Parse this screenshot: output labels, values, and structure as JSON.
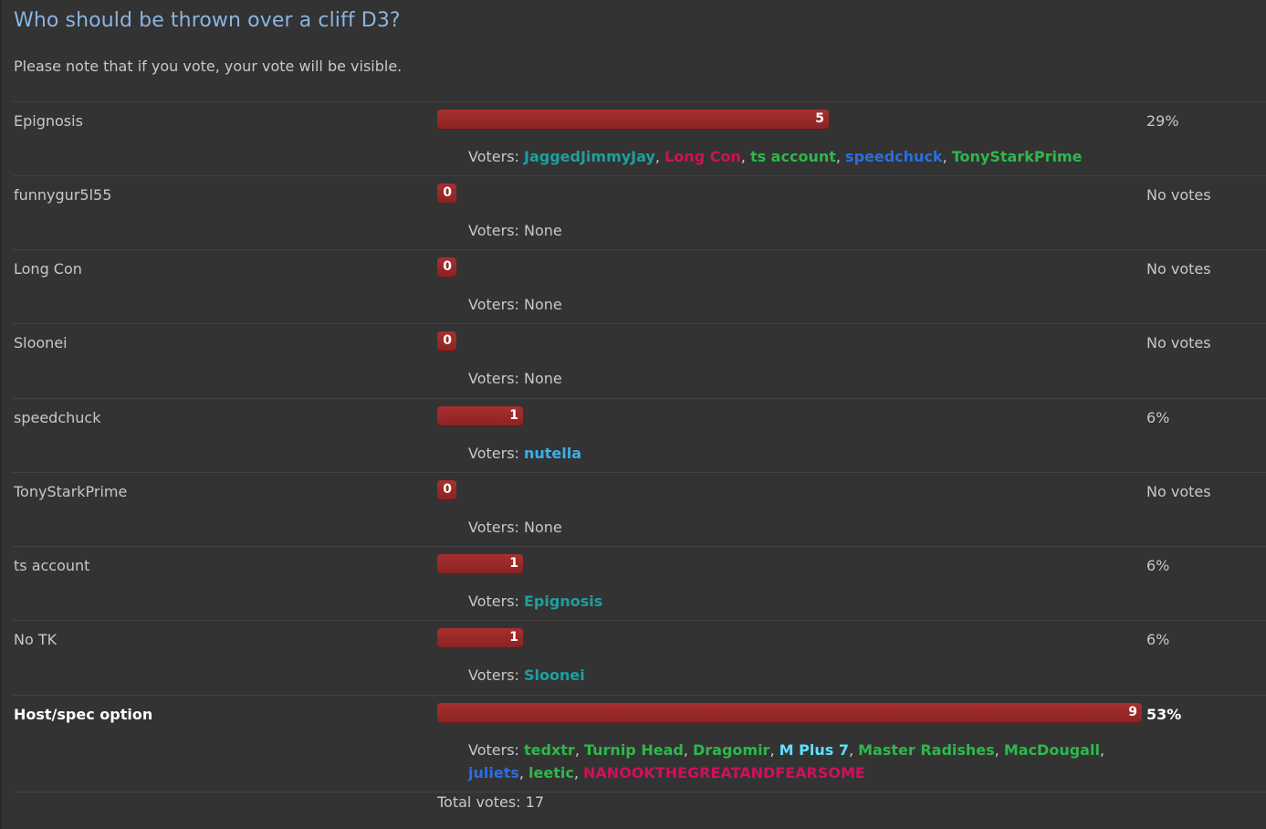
{
  "poll": {
    "title": "Who should be thrown over a cliff D3?",
    "note": "Please note that if you vote, your vote will be visible.",
    "voters_label": "Voters:",
    "none_label": "None",
    "total_label": "Total votes: 17",
    "max_votes": 9,
    "bar_color": "#9a2a2a",
    "options": [
      {
        "label": "Epignosis",
        "count": "5",
        "percent": "29%",
        "bold": false,
        "voters": [
          {
            "name": "JaggedJimmyJay",
            "color": "#1e9f9f"
          },
          {
            "name": "Long Con",
            "color": "#d0105a"
          },
          {
            "name": "ts account",
            "color": "#2db84a"
          },
          {
            "name": "speedchuck",
            "color": "#2a6ee0"
          },
          {
            "name": "TonyStarkPrime",
            "color": "#2db84a"
          }
        ]
      },
      {
        "label": "funnygur5l55",
        "count": "0",
        "percent": "No votes",
        "bold": false,
        "voters": []
      },
      {
        "label": "Long Con",
        "count": "0",
        "percent": "No votes",
        "bold": false,
        "voters": []
      },
      {
        "label": "Sloonei",
        "count": "0",
        "percent": "No votes",
        "bold": false,
        "voters": []
      },
      {
        "label": "speedchuck",
        "count": "1",
        "percent": "6%",
        "bold": false,
        "voters": [
          {
            "name": "nutella",
            "color": "#3ab0e8"
          }
        ]
      },
      {
        "label": "TonyStarkPrime",
        "count": "0",
        "percent": "No votes",
        "bold": false,
        "voters": []
      },
      {
        "label": "ts account",
        "count": "1",
        "percent": "6%",
        "bold": false,
        "voters": [
          {
            "name": "Epignosis",
            "color": "#1e9f9f"
          }
        ]
      },
      {
        "label": "No TK",
        "count": "1",
        "percent": "6%",
        "bold": false,
        "voters": [
          {
            "name": "Sloonei",
            "color": "#1e9f9f"
          }
        ]
      },
      {
        "label": "Host/spec option",
        "count": "9",
        "percent": "53%",
        "bold": true,
        "voters": [
          {
            "name": "tedxtr",
            "color": "#2db84a"
          },
          {
            "name": "Turnip Head",
            "color": "#2db84a"
          },
          {
            "name": "Dragomir",
            "color": "#2db84a"
          },
          {
            "name": "M Plus 7",
            "color": "#5ee0ff"
          },
          {
            "name": "Master Radishes",
            "color": "#2db84a"
          },
          {
            "name": "MacDougall",
            "color": "#2db84a"
          },
          {
            "name": "juliets",
            "color": "#2a6ee0"
          },
          {
            "name": "leetic",
            "color": "#2db84a"
          },
          {
            "name": "NANOOKTHEGREATANDFEARSOME",
            "color": "#d0105a"
          }
        ]
      }
    ]
  }
}
